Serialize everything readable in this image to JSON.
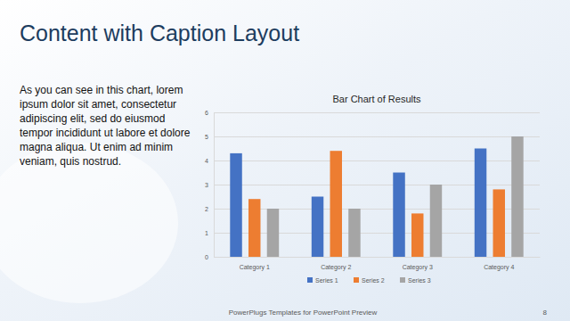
{
  "slide": {
    "title": "Content with Caption Layout",
    "caption": "As you can see in this chart, lorem ipsum dolor sit amet, consectetur adipiscing elit, sed do eiusmod tempor incididunt ut labore et dolore magna aliqua. Ut enim ad minim veniam, quis nostrud.",
    "footer": "PowerPlugs Templates for PowerPoint Preview",
    "slide_number": 8
  },
  "chart_data": {
    "type": "bar",
    "title": "Bar Chart of Results",
    "categories": [
      "Category 1",
      "Category 2",
      "Category 3",
      "Category 4"
    ],
    "series": [
      {
        "name": "Series 1",
        "color": "#4472c4",
        "values": [
          4.3,
          2.5,
          3.5,
          4.5
        ]
      },
      {
        "name": "Series 2",
        "color": "#ed7d31",
        "values": [
          2.4,
          4.4,
          1.8,
          2.8
        ]
      },
      {
        "name": "Series 3",
        "color": "#a5a5a5",
        "values": [
          2,
          2,
          3,
          5
        ]
      }
    ],
    "ylim": [
      0,
      6
    ],
    "yticks": [
      0,
      1,
      2,
      3,
      4,
      5,
      6
    ],
    "grid": true,
    "legend": "bottom"
  }
}
